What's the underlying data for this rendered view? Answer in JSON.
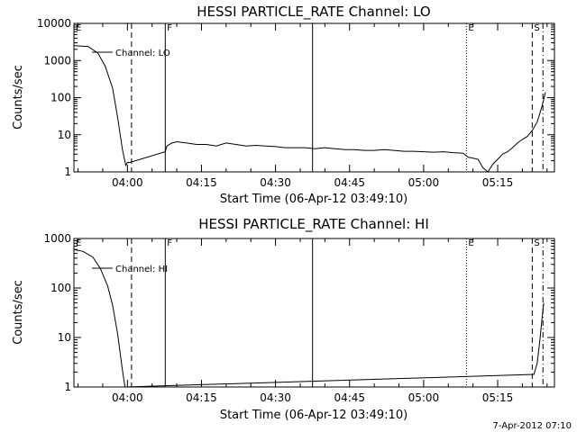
{
  "footer_date": "7-Apr-2012 07:10",
  "chart_data": [
    {
      "type": "line",
      "title": "HESSI PARTICLE_RATE Channel: LO",
      "xlabel": "Start Time (06-Apr-12 03:49:10)",
      "ylabel": "Counts/sec",
      "yscale": "log",
      "xlim": [
        "03:49:10",
        "05:26:30"
      ],
      "ylim": [
        1,
        10000
      ],
      "x_ticks": [
        "04:00",
        "04:15",
        "04:30",
        "04:45",
        "05:00",
        "05:15"
      ],
      "y_ticks": [
        "1",
        "10",
        "100",
        "1000",
        "10000"
      ],
      "legend": "Channel: LO",
      "markers": [
        {
          "label": "E",
          "time": "03:49:10",
          "style": "solid"
        },
        {
          "label": "",
          "time": "04:00:50",
          "style": "dashed"
        },
        {
          "label": "F",
          "time": "04:07:40",
          "style": "solid"
        },
        {
          "label": "",
          "time": "04:37:30",
          "style": "solid"
        },
        {
          "label": "E",
          "time": "05:08:40",
          "style": "dotted"
        },
        {
          "label": "S",
          "time": "05:22:00",
          "style": "dashed"
        },
        {
          "label": "",
          "time": "05:24:10",
          "style": "dashdot"
        }
      ],
      "series": [
        {
          "name": "Channel: LO",
          "x": [
            "03:49:10",
            "03:52:00",
            "03:54:00",
            "03:55:30",
            "03:57:00",
            "03:58:00",
            "03:59:00",
            "03:59:40",
            "04:00:00",
            "04:00:30",
            "04:07:40",
            "04:08:00",
            "04:09:00",
            "04:10:00",
            "04:12:00",
            "04:14:00",
            "04:16:00",
            "04:18:00",
            "04:20:00",
            "04:22:00",
            "04:24:00",
            "04:26:00",
            "04:28:00",
            "04:30:00",
            "04:32:00",
            "04:34:00",
            "04:36:00",
            "04:38:00",
            "04:40:00",
            "04:42:00",
            "04:44:00",
            "04:46:00",
            "04:48:00",
            "04:50:00",
            "04:52:00",
            "04:54:00",
            "04:56:00",
            "04:58:00",
            "05:00:00",
            "05:02:00",
            "05:04:00",
            "05:06:00",
            "05:08:00",
            "05:09:00",
            "05:11:00",
            "05:12:00",
            "05:13:00",
            "05:14:00",
            "05:16:00",
            "05:17:00",
            "05:18:00",
            "05:19:00",
            "05:20:00",
            "05:21:00",
            "05:22:00",
            "05:23:00",
            "05:24:00",
            "05:24:40"
          ],
          "values": [
            2500,
            2400,
            1600,
            700,
            180,
            30,
            4,
            1.5,
            1.8,
            1.8,
            3.5,
            5,
            6,
            6.5,
            6,
            5.5,
            5.5,
            5,
            6,
            5.5,
            5,
            5.2,
            5,
            4.8,
            4.5,
            4.5,
            4.5,
            4.2,
            4.5,
            4.2,
            4,
            4,
            3.8,
            3.8,
            4,
            3.8,
            3.6,
            3.6,
            3.5,
            3.4,
            3.5,
            3.3,
            3.2,
            2.5,
            2.2,
            1.3,
            1,
            1.6,
            3,
            3.5,
            4.5,
            6,
            7.5,
            9,
            13,
            22,
            60,
            140
          ]
        }
      ]
    },
    {
      "type": "line",
      "title": "HESSI PARTICLE_RATE Channel: HI",
      "xlabel": "Start Time (06-Apr-12 03:49:10)",
      "ylabel": "Counts/sec",
      "yscale": "log",
      "xlim": [
        "03:49:10",
        "05:26:30"
      ],
      "ylim": [
        1,
        1000
      ],
      "x_ticks": [
        "04:00",
        "04:15",
        "04:30",
        "04:45",
        "05:00",
        "05:15"
      ],
      "y_ticks": [
        "1",
        "10",
        "100",
        "1000"
      ],
      "legend": "Channel: HI",
      "markers": [
        {
          "label": "E",
          "time": "03:49:10",
          "style": "solid"
        },
        {
          "label": "",
          "time": "04:00:50",
          "style": "dashed"
        },
        {
          "label": "F",
          "time": "04:07:40",
          "style": "solid"
        },
        {
          "label": "",
          "time": "04:37:30",
          "style": "solid"
        },
        {
          "label": "E",
          "time": "05:08:40",
          "style": "dotted"
        },
        {
          "label": "S",
          "time": "05:22:00",
          "style": "dashed"
        },
        {
          "label": "",
          "time": "05:24:10",
          "style": "dashdot"
        }
      ],
      "series": [
        {
          "name": "Channel: HI",
          "x": [
            "03:49:10",
            "03:51:00",
            "03:53:00",
            "03:54:30",
            "03:56:00",
            "03:57:00",
            "03:58:00",
            "03:59:00",
            "03:59:30",
            "05:22:20",
            "05:23:00",
            "05:23:30",
            "05:24:00",
            "05:24:20"
          ],
          "values": [
            600,
            550,
            420,
            250,
            110,
            45,
            12,
            2.2,
            1,
            1.8,
            3,
            8,
            25,
            50
          ]
        }
      ]
    }
  ]
}
